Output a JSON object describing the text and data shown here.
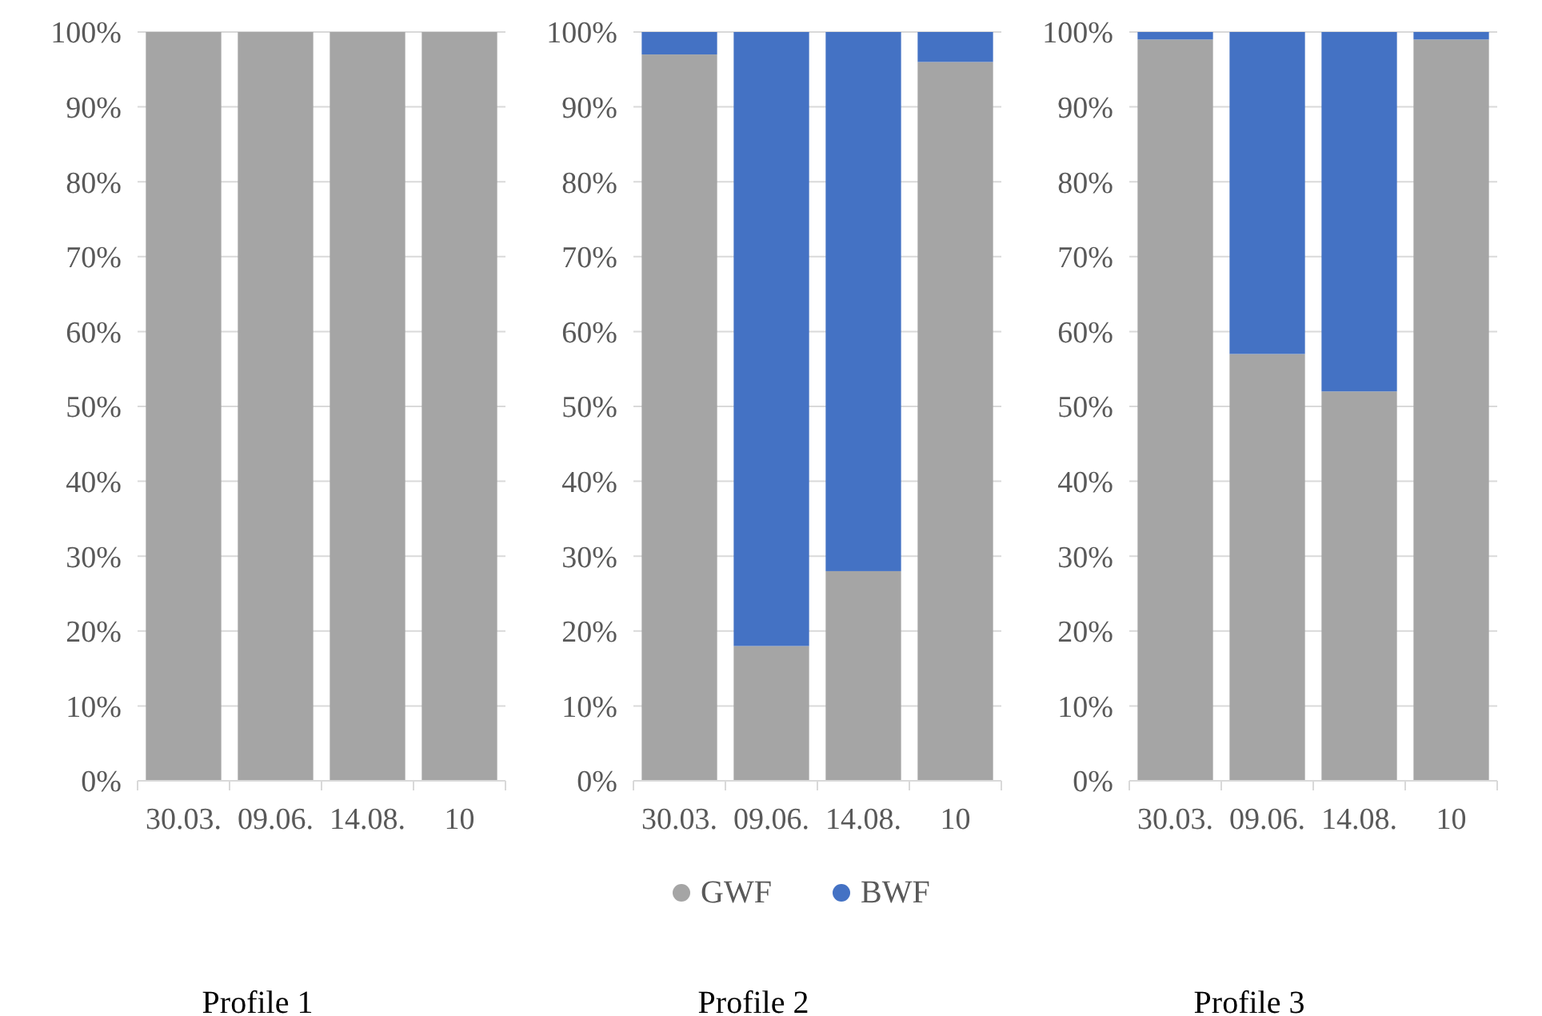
{
  "chart_data": [
    {
      "type": "bar",
      "title": "Profile 1",
      "categories": [
        "30.03.",
        "09.06.",
        "14.08.",
        "10"
      ],
      "stacked": true,
      "legend": false,
      "grid": "y",
      "ylim": [
        0,
        100
      ],
      "yticks": [
        {
          "value": 0,
          "label": "0%"
        },
        {
          "value": 10,
          "label": "10%"
        },
        {
          "value": 20,
          "label": "20%"
        },
        {
          "value": 30,
          "label": "30%"
        },
        {
          "value": 40,
          "label": "40%"
        },
        {
          "value": 50,
          "label": "50%"
        },
        {
          "value": 60,
          "label": "60%"
        },
        {
          "value": 70,
          "label": "70%"
        },
        {
          "value": 80,
          "label": "80%"
        },
        {
          "value": 90,
          "label": "90%"
        },
        {
          "value": 100,
          "label": "100%"
        }
      ],
      "series": [
        {
          "color": "#a5a5a5",
          "values": [
            100,
            100,
            100,
            100
          ]
        },
        {
          "color": "#4472c4",
          "values": [
            0,
            0,
            0,
            0
          ]
        }
      ]
    },
    {
      "type": "bar",
      "title": "Profile 2",
      "categories": [
        "30.03.",
        "09.06.",
        "14.08.",
        "10"
      ],
      "stacked": true,
      "legend": "bottom",
      "grid": "y",
      "ylim": [
        0,
        100
      ],
      "yticks": [
        {
          "value": 0,
          "label": "0%"
        },
        {
          "value": 10,
          "label": "10%"
        },
        {
          "value": 20,
          "label": "20%"
        },
        {
          "value": 30,
          "label": "30%"
        },
        {
          "value": 40,
          "label": "40%"
        },
        {
          "value": 50,
          "label": "50%"
        },
        {
          "value": 60,
          "label": "60%"
        },
        {
          "value": 70,
          "label": "70%"
        },
        {
          "value": 80,
          "label": "80%"
        },
        {
          "value": 90,
          "label": "90%"
        },
        {
          "value": 100,
          "label": "100%"
        }
      ],
      "series": [
        {
          "name": "GWF",
          "color": "#a5a5a5",
          "values": [
            97,
            18,
            28,
            96
          ]
        },
        {
          "name": "BWF",
          "color": "#4472c4",
          "values": [
            3,
            82,
            72,
            4
          ]
        }
      ]
    },
    {
      "type": "bar",
      "title": "Profile 3",
      "categories": [
        "30.03.",
        "09.06.",
        "14.08.",
        "10"
      ],
      "stacked": true,
      "legend": false,
      "grid": "y",
      "ylim": [
        0,
        100
      ],
      "yticks": [
        {
          "value": 0,
          "label": "0%"
        },
        {
          "value": 10,
          "label": "10%"
        },
        {
          "value": 20,
          "label": "20%"
        },
        {
          "value": 30,
          "label": "30%"
        },
        {
          "value": 40,
          "label": "40%"
        },
        {
          "value": 50,
          "label": "50%"
        },
        {
          "value": 60,
          "label": "60%"
        },
        {
          "value": 70,
          "label": "70%"
        },
        {
          "value": 80,
          "label": "80%"
        },
        {
          "value": 90,
          "label": "90%"
        },
        {
          "value": 100,
          "label": "100%"
        }
      ],
      "series": [
        {
          "color": "#a5a5a5",
          "values": [
            99,
            57,
            52,
            99
          ]
        },
        {
          "color": "#4472c4",
          "values": [
            1,
            43,
            48,
            1
          ]
        }
      ]
    }
  ]
}
